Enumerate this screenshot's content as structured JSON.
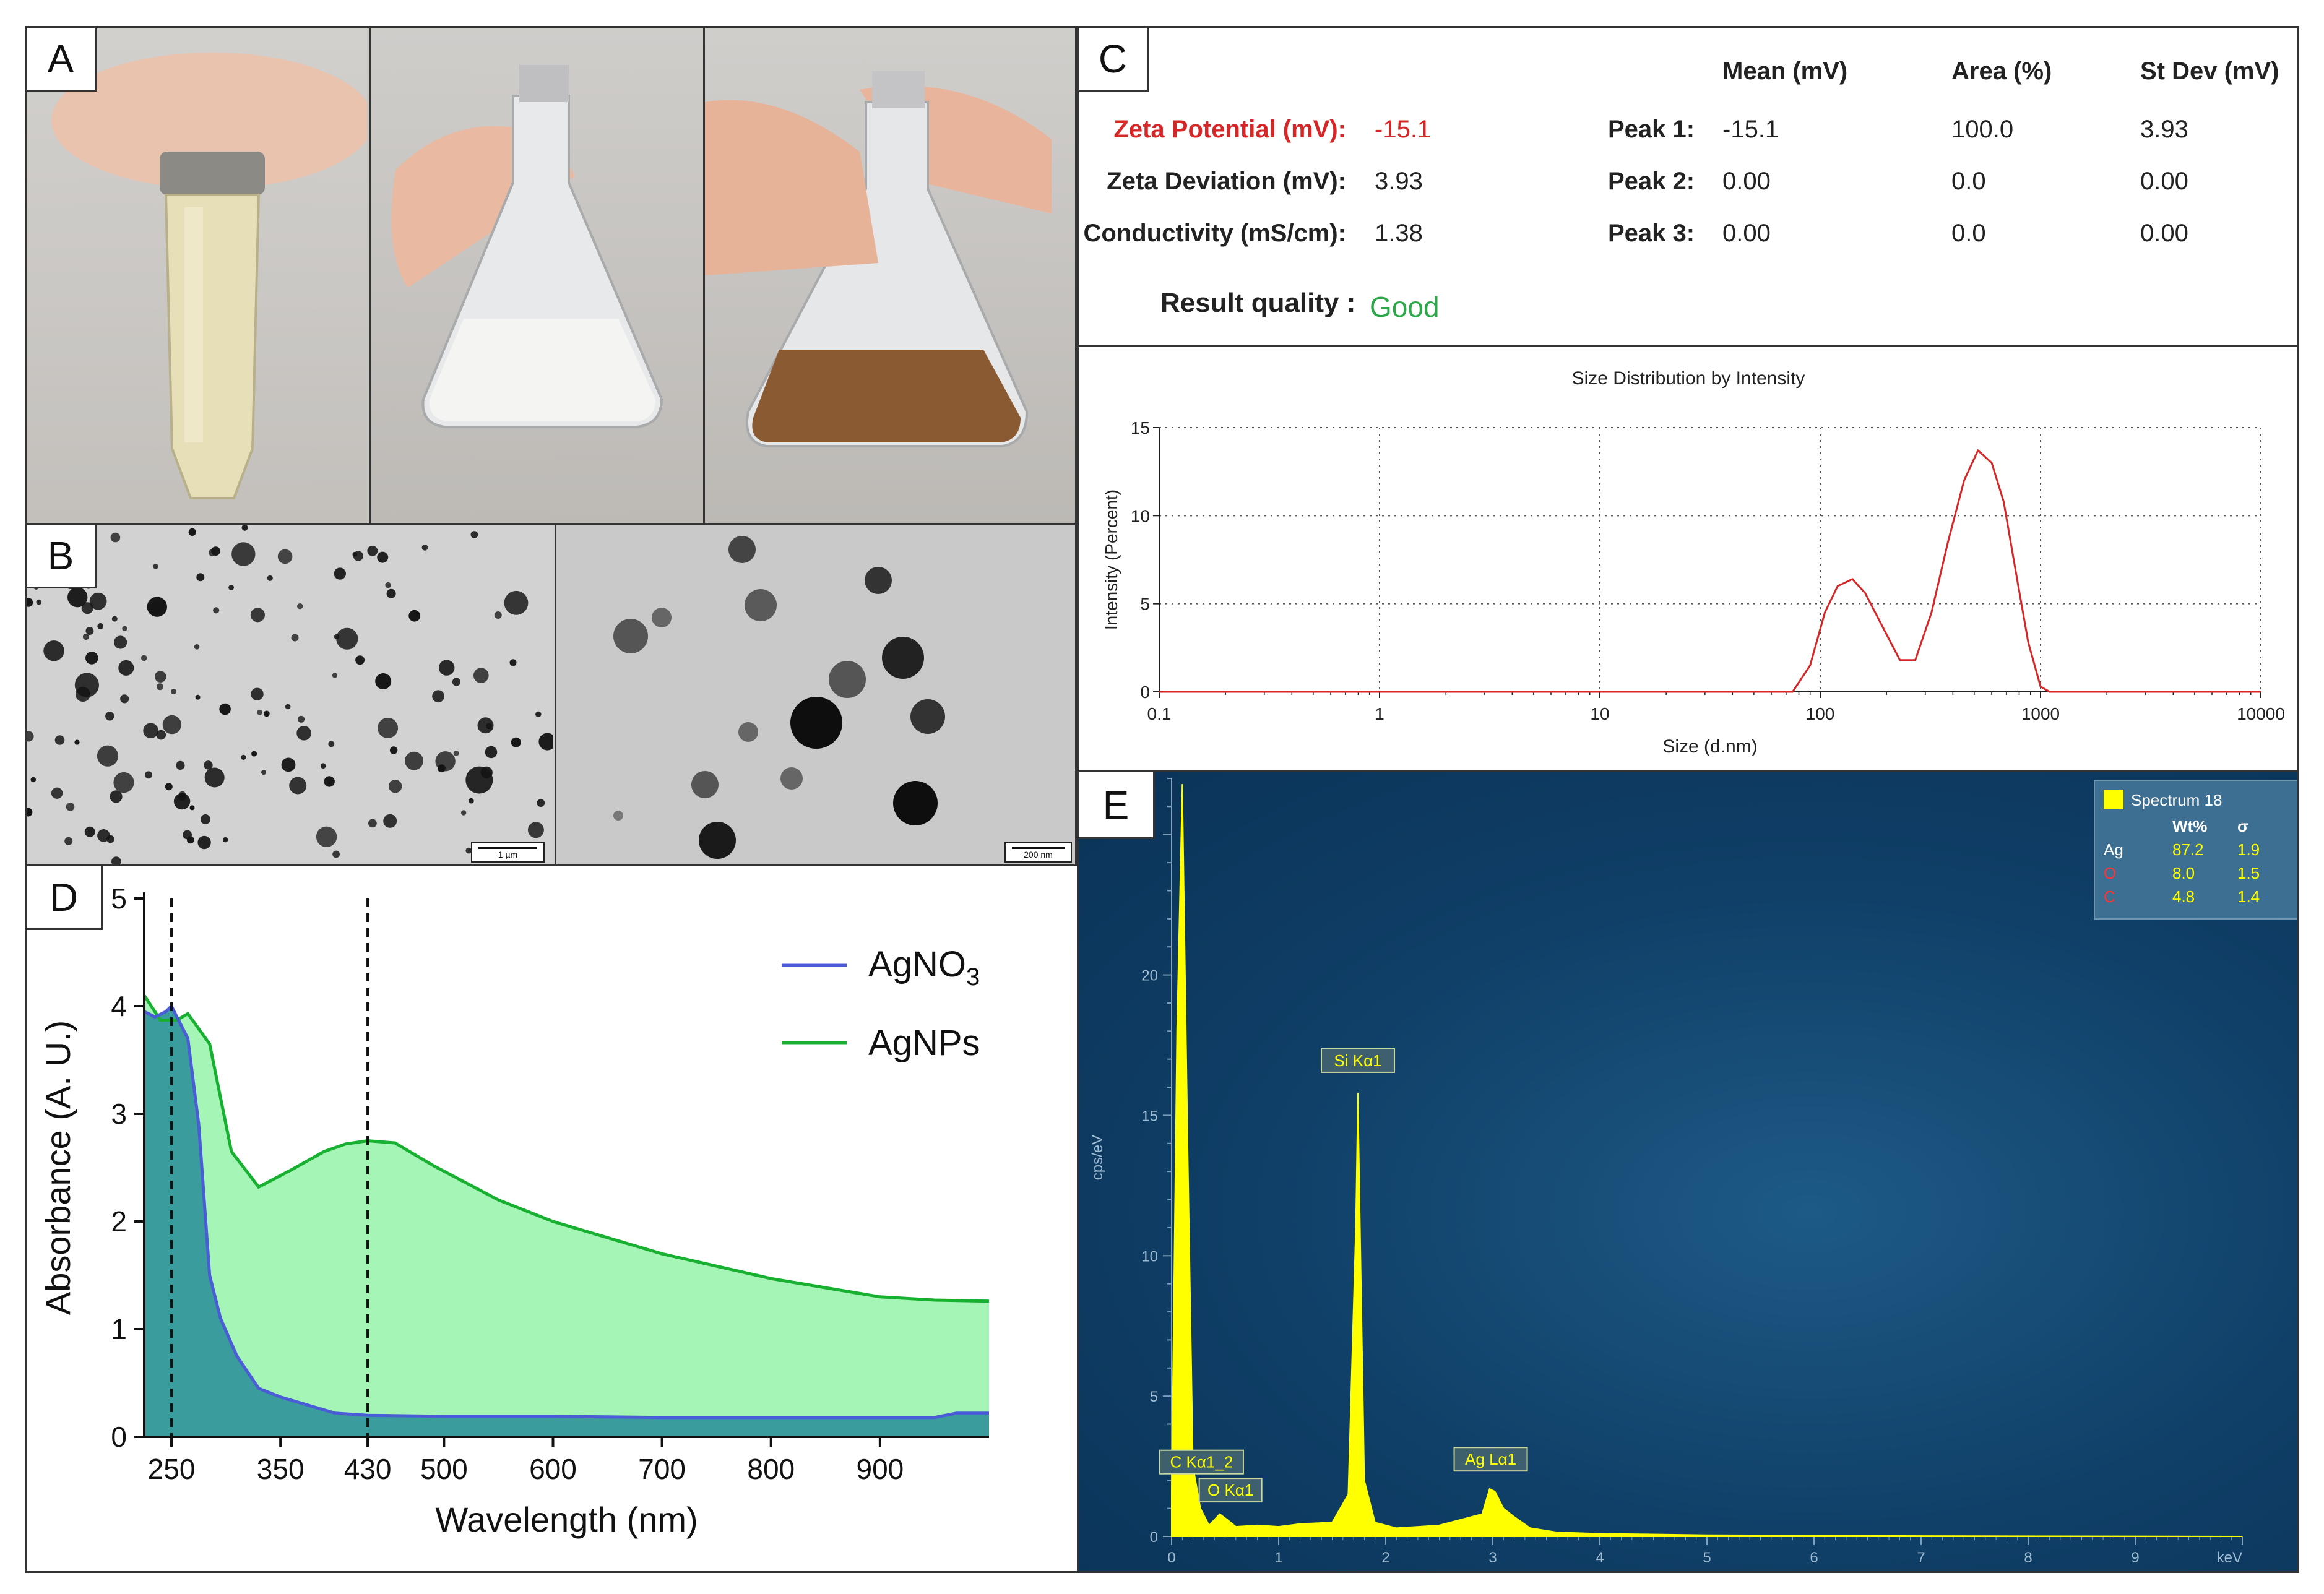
{
  "panel_letters": {
    "a": "A",
    "b": "B",
    "c": "C",
    "d": "D",
    "e": "E"
  },
  "panel_b": {
    "scale_left": "1 µm",
    "scale_right": "200 nm"
  },
  "zeta": {
    "headers": {
      "mean": "Mean (mV)",
      "area": "Area (%)",
      "stdev": "St Dev (mV)"
    },
    "zeta_potential": {
      "label": "Zeta Potential (mV):",
      "value": "-15.1"
    },
    "zeta_deviation": {
      "label": "Zeta Deviation (mV):",
      "value": "3.93"
    },
    "conductivity": {
      "label": "Conductivity (mS/cm):",
      "value": "1.38"
    },
    "peaks": [
      {
        "label": "Peak 1:",
        "mean": "-15.1",
        "area": "100.0",
        "stdev": "3.93"
      },
      {
        "label": "Peak 2:",
        "mean": "0.00",
        "area": "0.0",
        "stdev": "0.00"
      },
      {
        "label": "Peak 3:",
        "mean": "0.00",
        "area": "0.0",
        "stdev": "0.00"
      }
    ],
    "quality": {
      "label": "Result quality :",
      "value": "Good"
    },
    "colors": {
      "zeta_label": "#d62728",
      "good": "#2ca84a"
    }
  },
  "chart_data": [
    {
      "type": "line",
      "title": "Size Distribution by Intensity",
      "xlabel": "Size (d.nm)",
      "ylabel": "Intensity (Percent)",
      "xscale": "log",
      "xlim": [
        0.1,
        10000
      ],
      "ylim": [
        0,
        15
      ],
      "xticks": [
        0.1,
        1,
        10,
        100,
        1000,
        10000
      ],
      "xtick_labels": [
        "0.1",
        "1",
        "10",
        "100",
        "1000",
        "10000"
      ],
      "yticks": [
        0,
        5,
        10,
        15
      ],
      "grid": true,
      "series": [
        {
          "color": "#d62728",
          "x": [
            0.1,
            0.4,
            50,
            75,
            90,
            105,
            120,
            140,
            160,
            190,
            230,
            270,
            320,
            380,
            450,
            520,
            600,
            680,
            780,
            880,
            1000,
            1100,
            10000
          ],
          "y": [
            0,
            0,
            0,
            0,
            1.5,
            4.5,
            6.0,
            6.4,
            5.6,
            3.8,
            1.8,
            1.8,
            4.5,
            8.5,
            12.0,
            13.7,
            13.0,
            10.8,
            6.5,
            2.8,
            0.3,
            0,
            0
          ]
        }
      ]
    },
    {
      "type": "area",
      "xlabel": "Wavelength (nm)",
      "ylabel": "Absorbance (A. U.)",
      "xlim": [
        225,
        1000
      ],
      "ylim": [
        0,
        5
      ],
      "xticks": [
        250,
        350,
        430,
        500,
        600,
        700,
        800,
        900
      ],
      "yticks": [
        0,
        1,
        2,
        3,
        4,
        5
      ],
      "vlines": [
        250,
        430
      ],
      "legend_position": "top-right",
      "series": [
        {
          "name": "AgNO",
          "name_sub": "3",
          "line_color": "#4a5cd6",
          "fill_color": "#3a9c9c",
          "x": [
            225,
            235,
            245,
            250,
            255,
            265,
            275,
            285,
            295,
            310,
            330,
            350,
            380,
            400,
            430,
            500,
            600,
            700,
            800,
            900,
            950,
            970,
            1000
          ],
          "y": [
            3.95,
            3.9,
            3.95,
            4.0,
            3.9,
            3.7,
            2.9,
            1.5,
            1.1,
            0.75,
            0.45,
            0.37,
            0.28,
            0.22,
            0.2,
            0.19,
            0.19,
            0.18,
            0.18,
            0.18,
            0.18,
            0.22,
            0.22
          ]
        },
        {
          "name": "AgNPs",
          "line_color": "#18b030",
          "fill_color": "#a4f5b6",
          "x": [
            225,
            240,
            255,
            265,
            285,
            305,
            330,
            360,
            390,
            410,
            430,
            455,
            490,
            550,
            600,
            700,
            800,
            900,
            950,
            1000
          ],
          "y": [
            4.1,
            3.87,
            3.87,
            3.93,
            3.65,
            2.65,
            2.32,
            2.48,
            2.65,
            2.72,
            2.75,
            2.73,
            2.52,
            2.2,
            2.0,
            1.7,
            1.47,
            1.3,
            1.27,
            1.26
          ]
        }
      ]
    },
    {
      "type": "area",
      "xlabel": "keV",
      "ylabel": "cps/eV",
      "xlim": [
        0,
        10
      ],
      "ylim": [
        0,
        27
      ],
      "xticks": [
        0,
        1,
        2,
        3,
        4,
        5,
        6,
        7,
        8,
        9
      ],
      "yticks": [
        0,
        5,
        10,
        15,
        20
      ],
      "series": [
        {
          "name": "Spectrum 18",
          "color": "#ffff00",
          "x": [
            0,
            0.05,
            0.1,
            0.15,
            0.2,
            0.27,
            0.35,
            0.45,
            0.52,
            0.6,
            0.8,
            1.0,
            1.2,
            1.5,
            1.65,
            1.72,
            1.74,
            1.76,
            1.8,
            1.9,
            2.1,
            2.5,
            2.9,
            2.97,
            3.02,
            3.1,
            3.2,
            3.35,
            3.6,
            4.0,
            5.0,
            7.0,
            10.0
          ],
          "y": [
            1.5,
            18,
            26.8,
            14,
            2.5,
            1.0,
            0.4,
            0.8,
            0.6,
            0.35,
            0.4,
            0.35,
            0.45,
            0.5,
            1.5,
            11,
            15.8,
            11,
            2,
            0.5,
            0.3,
            0.4,
            0.8,
            1.7,
            1.6,
            1.0,
            0.7,
            0.3,
            0.15,
            0.1,
            0.05,
            0.02,
            0.0
          ]
        }
      ],
      "annotations": [
        {
          "label": "C Kα1_2",
          "x": 0.28,
          "y": 2.1
        },
        {
          "label": "O Kα1",
          "x": 0.55,
          "y": 1.1
        },
        {
          "label": "Si Kα1",
          "x": 1.74,
          "y": 16.4
        },
        {
          "label": "Ag Lα1",
          "x": 2.98,
          "y": 2.2
        }
      ],
      "legend": {
        "title": "Spectrum 18",
        "columns": [
          "Wt%",
          "σ"
        ],
        "rows": [
          {
            "element": "Ag",
            "wt": "87.2",
            "sigma": "1.9",
            "color": "#ffffff"
          },
          {
            "element": "O",
            "wt": "8.0",
            "sigma": "1.5",
            "color": "#ff3333"
          },
          {
            "element": "C",
            "wt": "4.8",
            "sigma": "1.4",
            "color": "#ff3333"
          }
        ]
      }
    }
  ]
}
